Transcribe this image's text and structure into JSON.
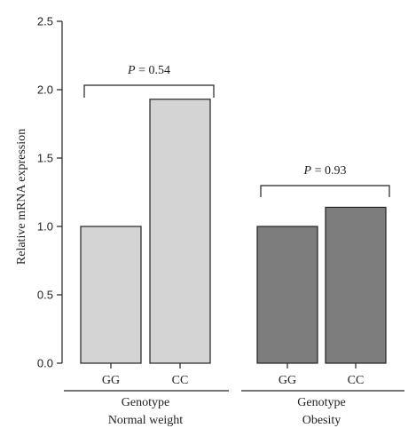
{
  "chart_data": {
    "type": "bar",
    "ylabel": "Relative mRNA expression",
    "ylim": [
      0,
      2.5
    ],
    "yticks": [
      "0.0",
      "0.5",
      "1.0",
      "1.5",
      "2.0",
      "2.5"
    ],
    "groups": [
      {
        "genotype_label": "Genotype",
        "condition_label": "Normal weight",
        "categories": [
          "GG",
          "CC"
        ],
        "values": [
          1.0,
          1.93
        ],
        "color": "#d4d4d4",
        "p_prefix": "P",
        "p_suffix": " = 0.54"
      },
      {
        "genotype_label": "Genotype",
        "condition_label": "Obesity",
        "categories": [
          "GG",
          "CC"
        ],
        "values": [
          1.0,
          1.14
        ],
        "color": "#7d7d7d",
        "p_prefix": "P",
        "p_suffix": " = 0.93"
      }
    ]
  }
}
